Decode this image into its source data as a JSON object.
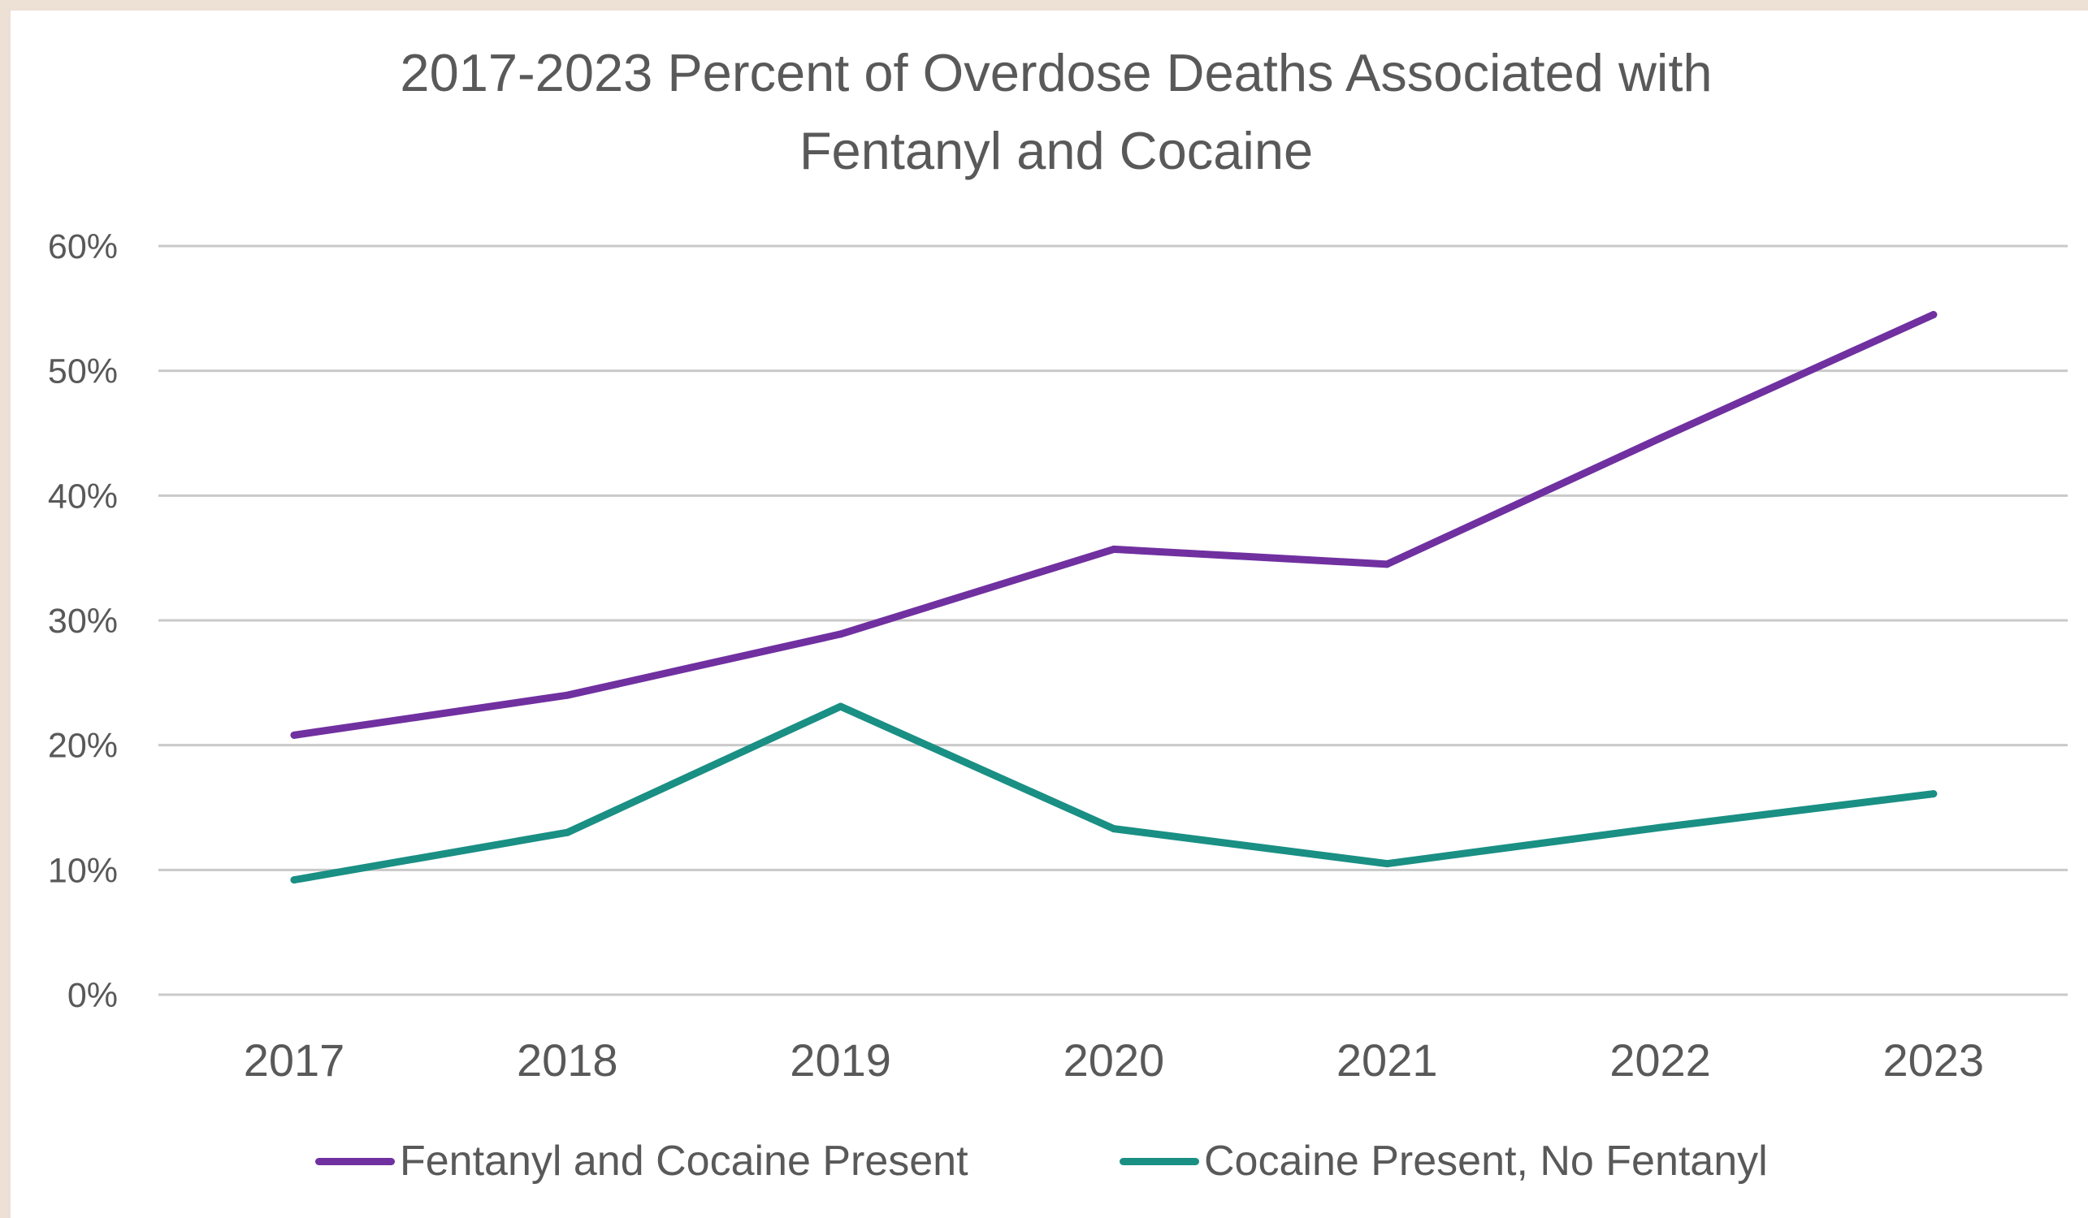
{
  "chart_data": {
    "type": "line",
    "title": "2017-2023 Percent of Overdose Deaths Associated with Fentanyl and Cocaine",
    "title_lines": [
      "2017-2023 Percent of Overdose Deaths Associated with",
      "Fentanyl and Cocaine"
    ],
    "categories": [
      "2017",
      "2018",
      "2019",
      "2020",
      "2021",
      "2022",
      "2023"
    ],
    "xlabel": "",
    "ylabel": "",
    "ylim": [
      0,
      0.6
    ],
    "yticks": [
      "0%",
      "10%",
      "20%",
      "30%",
      "40%",
      "50%",
      "60%"
    ],
    "grid": "horizontal",
    "legend_position": "bottom",
    "series": [
      {
        "name": "Fentanyl and Cocaine Present",
        "color": "#7030a0",
        "values": [
          0.208,
          0.24,
          0.289,
          0.357,
          0.345,
          0.446,
          0.545
        ]
      },
      {
        "name": "Cocaine Present, No Fentanyl",
        "color": "#1a8f84",
        "values": [
          0.092,
          0.13,
          0.231,
          0.133,
          0.105,
          0.134,
          0.161
        ]
      }
    ]
  }
}
